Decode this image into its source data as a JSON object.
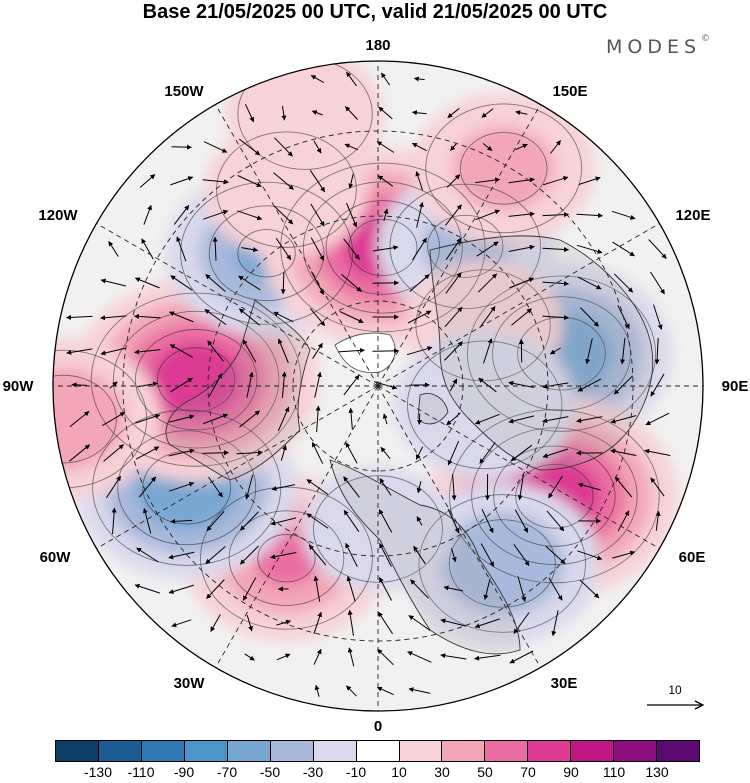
{
  "title": "Base 21/05/2025 00 UTC, valid 21/05/2025 00 UTC",
  "brand": "MODES",
  "brand_mark": "©",
  "longitude_labels": {
    "n180": "180",
    "w150": "150W",
    "e150": "150E",
    "w120": "120W",
    "e120": "120E",
    "w90": "90W",
    "e90": "90E",
    "w60": "60W",
    "e60": "60E",
    "w30": "30W",
    "e30": "30E",
    "s0": "0"
  },
  "reference_vector": {
    "label": "10",
    "icon": "arrow-right-icon"
  },
  "colorbar": {
    "colors": [
      "#0f3f66",
      "#1d5d96",
      "#2f78b4",
      "#4c95c8",
      "#7aa7d2",
      "#a9b9dc",
      "#dad9ec",
      "#ffffff",
      "#f7d2d7",
      "#f2a6b6",
      "#ea6ea2",
      "#dc3a93",
      "#c01684",
      "#8f0e7f",
      "#5a0a70"
    ],
    "ticks": [
      "-130",
      "-110",
      "-90",
      "-70",
      "-50",
      "-30",
      "-10",
      "10",
      "30",
      "50",
      "70",
      "90",
      "110",
      "130"
    ]
  },
  "anomaly_centers": [
    {
      "lon": 100,
      "lat": 47,
      "value": -75
    },
    {
      "lon": 58,
      "lat": 42,
      "value": 95
    },
    {
      "lon": 35,
      "lat": 40,
      "value": -55
    },
    {
      "lon": -28,
      "lat": 45,
      "value": 60
    },
    {
      "lon": -62,
      "lat": 40,
      "value": -75
    },
    {
      "lon": -92,
      "lat": 48,
      "value": 95
    },
    {
      "lon": -84,
      "lat": 17,
      "value": 55
    },
    {
      "lon": -140,
      "lat": 50,
      "value": -60
    },
    {
      "lon": 178,
      "lat": 58,
      "value": 90
    },
    {
      "lon": 148,
      "lat": 52,
      "value": -40
    },
    {
      "lon": 150,
      "lat": 32,
      "value": 45
    },
    {
      "lon": -165,
      "lat": 25,
      "value": 25
    },
    {
      "lon": -155,
      "lat": 40,
      "value": 30
    },
    {
      "lon": 120,
      "lat": 62,
      "value": 25
    },
    {
      "lon": 0,
      "lat": 57,
      "value": -20
    },
    {
      "lon": 80,
      "lat": 65,
      "value": -15
    }
  ]
}
